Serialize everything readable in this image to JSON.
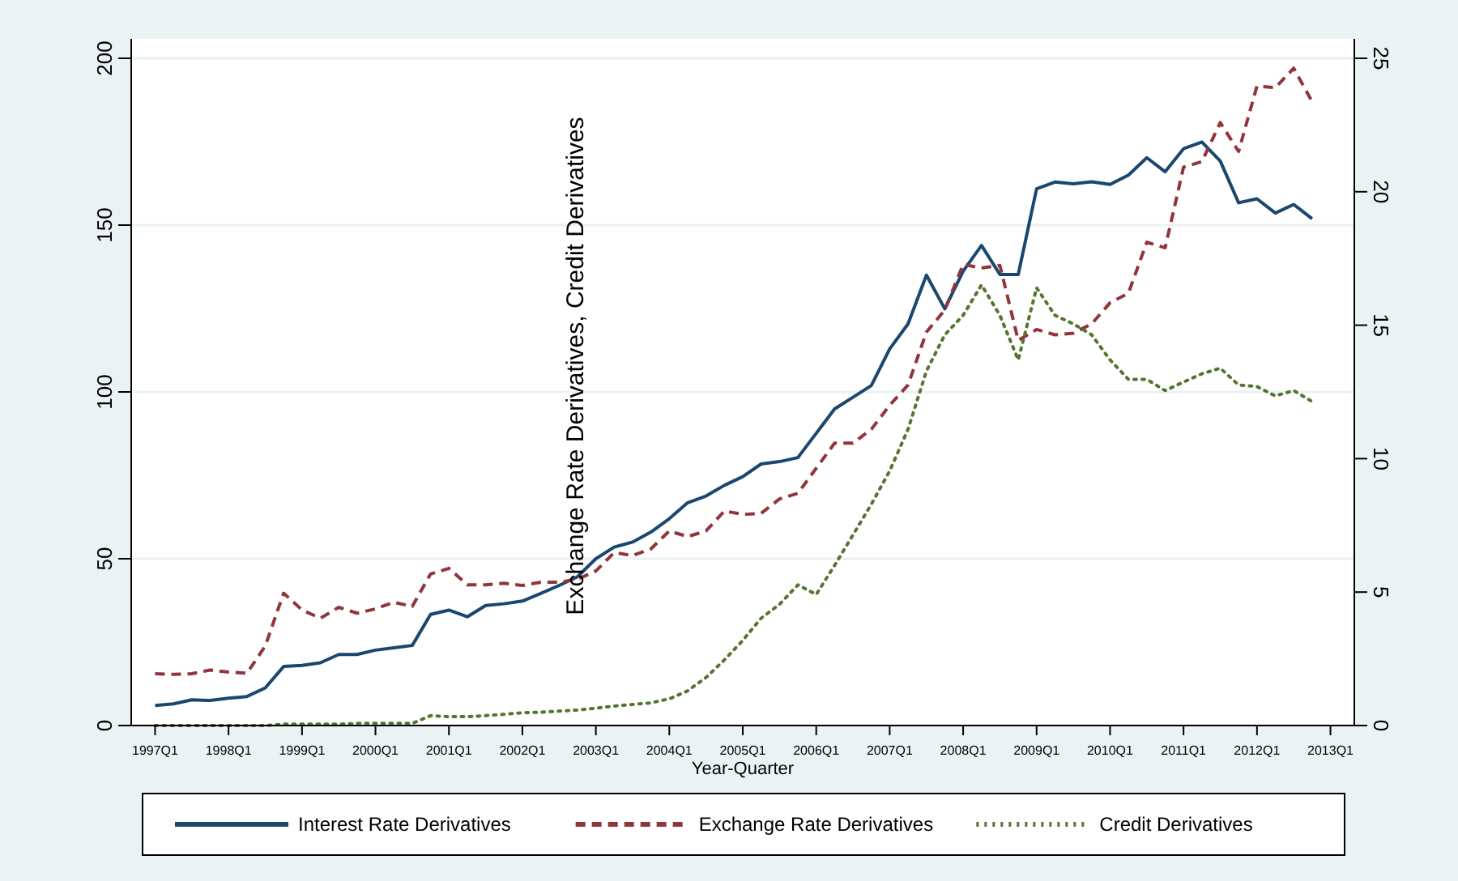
{
  "chart_data": {
    "type": "line",
    "xlabel": "Year-Quarter",
    "annotations": [
      "Exchange Rate Derivatives, Credit Derivatives"
    ],
    "categories": [
      "1997Q1",
      null,
      null,
      null,
      "1998Q1",
      null,
      null,
      null,
      "1999Q1",
      null,
      null,
      null,
      "2000Q1",
      null,
      null,
      null,
      "2001Q1",
      null,
      null,
      null,
      "2002Q1",
      null,
      null,
      null,
      "2003Q1",
      null,
      null,
      null,
      "2004Q1",
      null,
      null,
      null,
      "2005Q1",
      null,
      null,
      null,
      "2006Q1",
      null,
      null,
      null,
      "2007Q1",
      null,
      null,
      null,
      "2008Q1",
      null,
      null,
      null,
      "2009Q1",
      null,
      null,
      null,
      "2010Q1",
      null,
      null,
      null,
      "2011Q1",
      null,
      null,
      null,
      "2012Q1",
      null,
      null,
      null,
      "2013Q1"
    ],
    "ylim": [
      0,
      200
    ],
    "yticks": [
      0,
      50,
      100,
      150,
      200
    ],
    "y2lim": [
      0,
      25
    ],
    "y2ticks": [
      0,
      5,
      10,
      15,
      20,
      25
    ],
    "grid": "y",
    "legend": "bottom",
    "series": [
      {
        "name": "Interest Rate Derivatives",
        "color": "#1a476f",
        "line_style": "solid",
        "values": [
          6.0,
          6.5,
          7.7,
          7.5,
          8.2,
          8.7,
          11.3,
          17.7,
          18.0,
          18.8,
          21.3,
          21.3,
          22.6,
          23.3,
          24.0,
          33.3,
          34.6,
          32.6,
          36.0,
          36.5,
          37.3,
          39.6,
          42.0,
          44.6,
          50.0,
          53.5,
          55.0,
          58.0,
          62.0,
          66.8,
          68.8,
          72.0,
          74.6,
          78.4,
          79.1,
          80.3,
          87.6,
          94.9,
          98.4,
          101.9,
          112.9,
          120.4,
          135.0,
          124.9,
          136.2,
          143.9,
          135.2,
          135.2,
          160.9,
          162.9,
          162.4,
          163.0,
          162.2,
          165.0,
          170.2,
          166.0,
          172.9,
          174.9,
          169.2,
          156.7,
          157.9,
          153.6,
          156.2,
          151.9,
          null
        ]
      },
      {
        "name": "Exchange Rate Derivatives",
        "color": "#90353b",
        "line_style": "dashed",
        "axis": "y2",
        "values": [
          1.94,
          1.92,
          1.94,
          2.08,
          2.0,
          1.96,
          2.98,
          4.96,
          4.33,
          4.02,
          4.43,
          4.21,
          4.37,
          4.62,
          4.46,
          5.68,
          5.89,
          5.27,
          5.27,
          5.33,
          5.25,
          5.37,
          5.37,
          5.48,
          5.79,
          6.48,
          6.37,
          6.62,
          7.29,
          7.08,
          7.29,
          8.04,
          7.91,
          7.95,
          8.49,
          8.7,
          9.64,
          10.58,
          10.58,
          11.1,
          12.0,
          12.76,
          14.74,
          15.57,
          17.28,
          17.14,
          17.24,
          14.43,
          14.84,
          14.64,
          14.7,
          15.05,
          15.84,
          16.2,
          18.11,
          17.9,
          20.92,
          21.13,
          22.59,
          21.51,
          23.96,
          23.9,
          24.63,
          23.38,
          null
        ]
      },
      {
        "name": "Credit Derivatives",
        "color": "#55752f",
        "line_style": "dotted",
        "axis": "y2",
        "values": [
          0,
          0,
          0,
          0,
          0,
          0,
          0,
          0.05,
          0.05,
          0.05,
          0.05,
          0.08,
          0.08,
          0.08,
          0.08,
          0.37,
          0.33,
          0.33,
          0.37,
          0.42,
          0.48,
          0.5,
          0.54,
          0.58,
          0.65,
          0.73,
          0.79,
          0.85,
          1.0,
          1.3,
          1.8,
          2.46,
          3.19,
          4.02,
          4.54,
          5.27,
          4.91,
          6.0,
          7.14,
          8.29,
          9.54,
          11.1,
          13.28,
          14.64,
          15.37,
          16.51,
          15.37,
          13.7,
          16.4,
          15.37,
          15.05,
          14.64,
          13.7,
          12.97,
          12.97,
          12.55,
          12.87,
          13.18,
          13.39,
          12.76,
          12.7,
          12.35,
          12.55,
          12.14,
          null
        ]
      }
    ]
  }
}
